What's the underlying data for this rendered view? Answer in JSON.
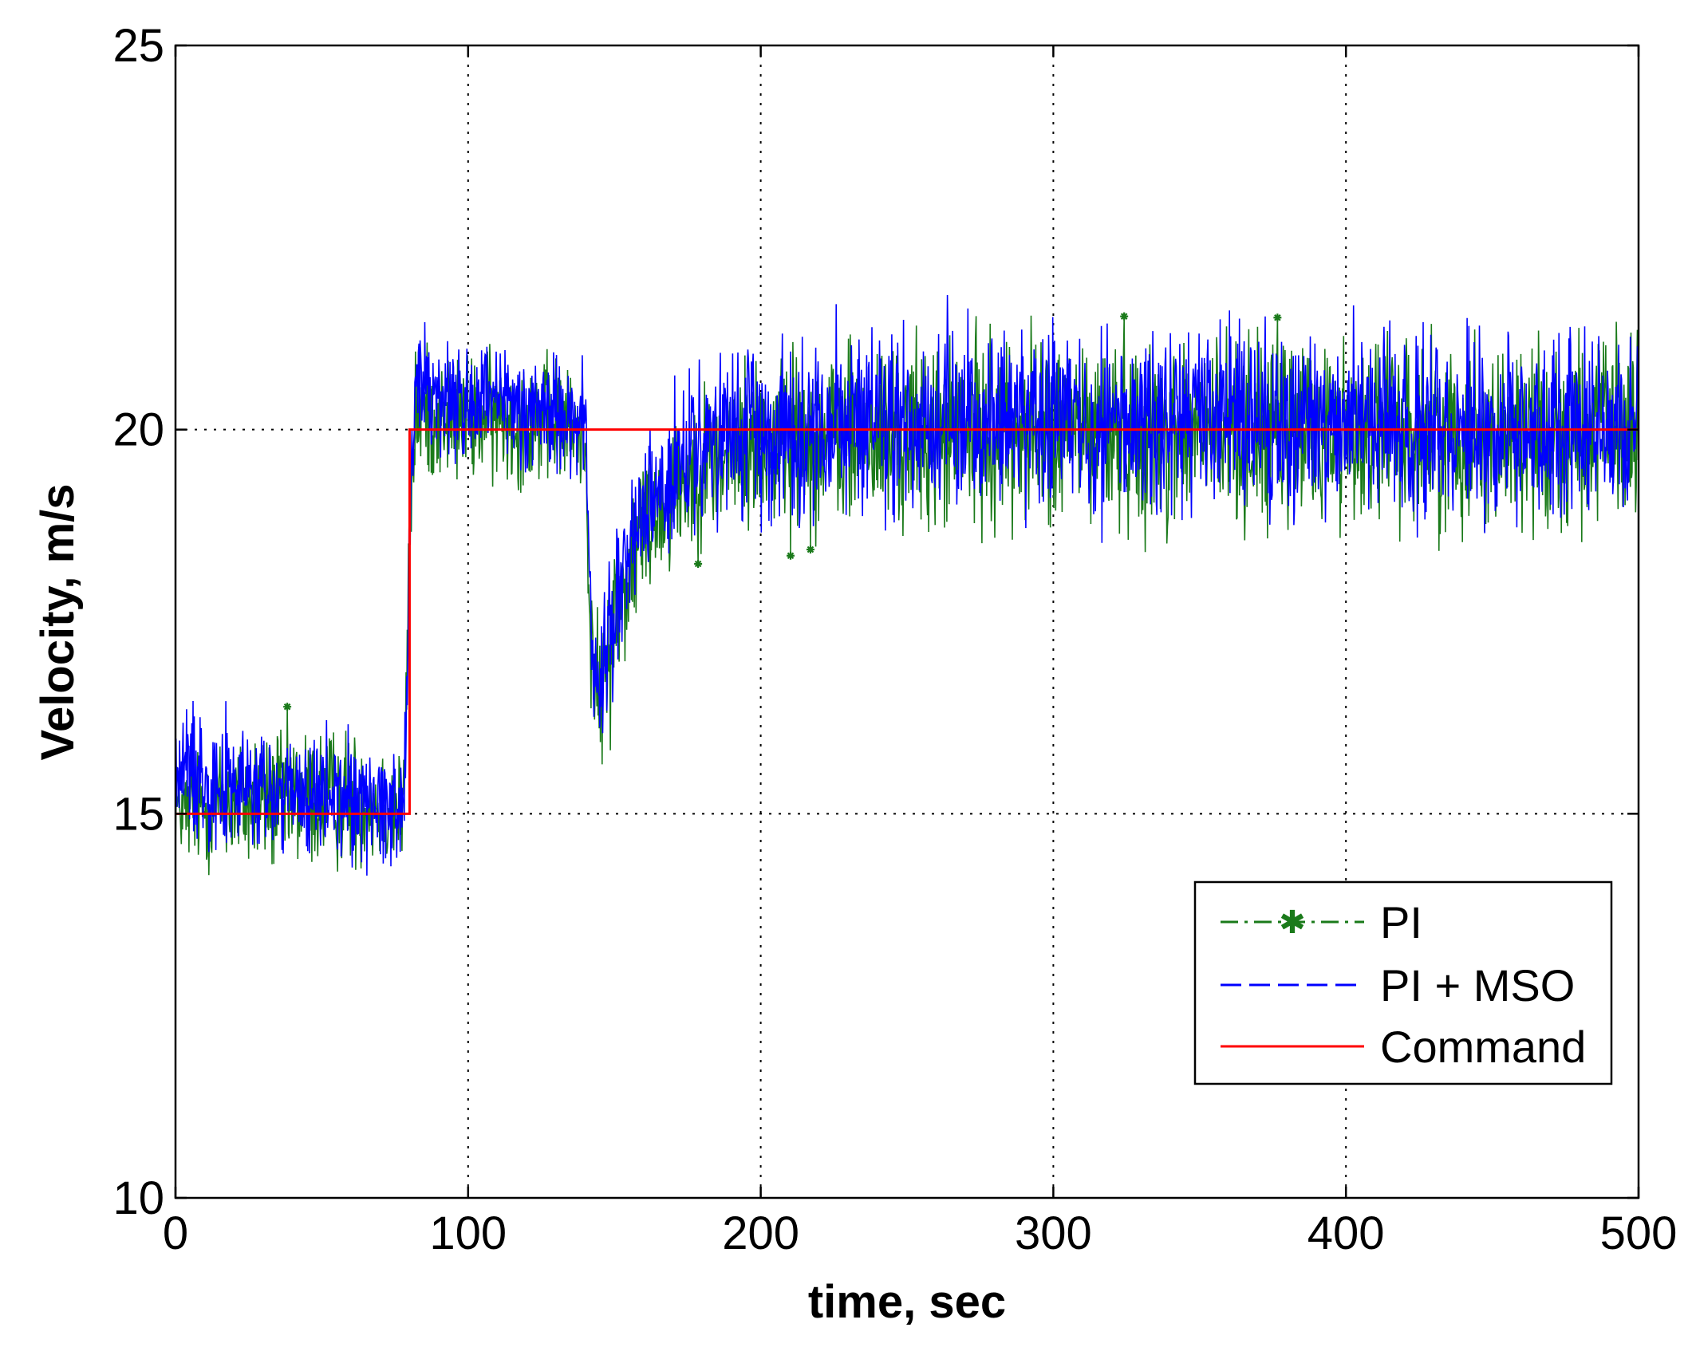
{
  "chart_data": {
    "type": "line",
    "title": "",
    "xlabel": "time, sec",
    "ylabel": "Velocity, m/s",
    "xlim": [
      0,
      500
    ],
    "ylim": [
      10,
      25
    ],
    "xticks": [
      0,
      100,
      200,
      300,
      400,
      500
    ],
    "yticks": [
      10,
      15,
      20,
      25
    ],
    "xtick_labels": [
      "0",
      "100",
      "200",
      "300",
      "400",
      "500"
    ],
    "ytick_labels": [
      "10",
      "15",
      "20",
      "25"
    ],
    "grid": "dotted",
    "legend_position": "lower-right",
    "series": [
      {
        "name": "PI",
        "color": "#1a7a1a",
        "style": "dash-dot with star markers",
        "envelope": {
          "x": [
            0,
            5,
            20,
            40,
            60,
            78,
            80,
            82,
            90,
            110,
            130,
            140,
            142,
            145,
            150,
            160,
            170,
            180,
            200,
            250,
            300,
            350,
            400,
            450,
            500
          ],
          "mean": [
            15.0,
            15.2,
            15.3,
            15.2,
            15.3,
            15.2,
            18.0,
            20.4,
            20.3,
            20.2,
            20.1,
            20.0,
            17.5,
            16.3,
            17.5,
            18.7,
            19.2,
            19.5,
            19.8,
            19.9,
            20.0,
            20.0,
            19.9,
            20.0,
            19.9
          ],
          "lower": [
            14.2,
            14.0,
            13.8,
            13.8,
            13.9,
            13.9,
            17.5,
            19.0,
            19.0,
            18.9,
            18.9,
            18.8,
            16.0,
            15.0,
            15.8,
            17.3,
            17.8,
            18.1,
            18.2,
            18.1,
            18.2,
            18.1,
            18.2,
            18.1,
            18.2
          ],
          "upper": [
            15.9,
            16.1,
            16.5,
            16.6,
            16.5,
            16.2,
            19.5,
            21.5,
            21.3,
            21.4,
            21.3,
            21.0,
            18.3,
            17.8,
            19.2,
            20.2,
            20.6,
            21.0,
            21.5,
            21.7,
            21.8,
            21.8,
            21.8,
            21.7,
            21.8
          ]
        }
      },
      {
        "name": "PI + MSO",
        "color": "#0000ff",
        "style": "dashed",
        "envelope": {
          "x": [
            0,
            5,
            20,
            40,
            60,
            78,
            80,
            82,
            90,
            110,
            130,
            140,
            142,
            145,
            150,
            160,
            170,
            180,
            200,
            250,
            300,
            350,
            400,
            450,
            500
          ],
          "mean": [
            15.3,
            15.5,
            15.4,
            15.3,
            15.3,
            15.2,
            18.2,
            20.6,
            20.4,
            20.3,
            20.2,
            20.1,
            17.6,
            16.4,
            17.6,
            18.8,
            19.3,
            19.6,
            19.9,
            20.0,
            20.0,
            20.0,
            20.0,
            20.0,
            20.0
          ],
          "lower": [
            14.5,
            14.3,
            14.1,
            14.0,
            14.0,
            13.9,
            17.7,
            19.3,
            19.2,
            19.1,
            19.1,
            19.0,
            16.2,
            15.2,
            16.0,
            17.5,
            18.0,
            18.3,
            18.4,
            18.4,
            18.4,
            18.3,
            18.4,
            18.3,
            18.4
          ],
          "upper": [
            16.5,
            16.9,
            16.6,
            16.4,
            16.4,
            16.3,
            19.7,
            21.9,
            21.6,
            21.5,
            21.4,
            21.2,
            18.4,
            17.9,
            19.4,
            20.4,
            20.8,
            21.2,
            21.6,
            21.8,
            21.9,
            21.9,
            21.8,
            21.8,
            21.8
          ]
        }
      },
      {
        "name": "Command",
        "color": "#ff0000",
        "style": "solid",
        "x": [
          0,
          80,
          80,
          500
        ],
        "y": [
          15,
          15,
          20,
          20
        ]
      }
    ]
  }
}
